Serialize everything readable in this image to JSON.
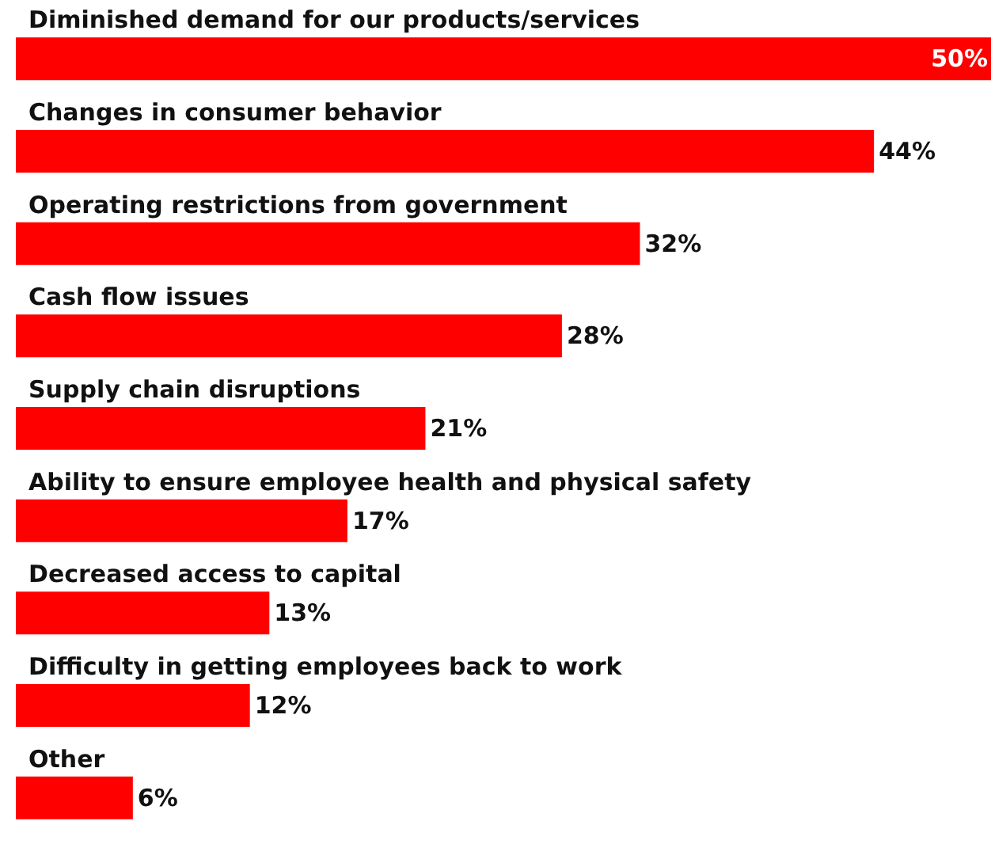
{
  "chart_data": {
    "type": "bar",
    "orientation": "horizontal",
    "color": "#ff0000",
    "value_labels": [
      "50%",
      "44%",
      "32%",
      "28%",
      "21%",
      "17%",
      "13%",
      "12%",
      "6%"
    ],
    "categories": [
      "Diminished demand for our products/services",
      "Changes in consumer behavior",
      "Operating restrictions from government",
      "Cash flow issues",
      "Supply chain disruptions",
      "Ability to ensure employee health and physical safety",
      "Decreased access to capital",
      "Difficulty in getting employees back to work",
      "Other"
    ],
    "values": [
      50,
      44,
      32,
      28,
      21,
      17,
      13,
      12,
      6
    ]
  }
}
